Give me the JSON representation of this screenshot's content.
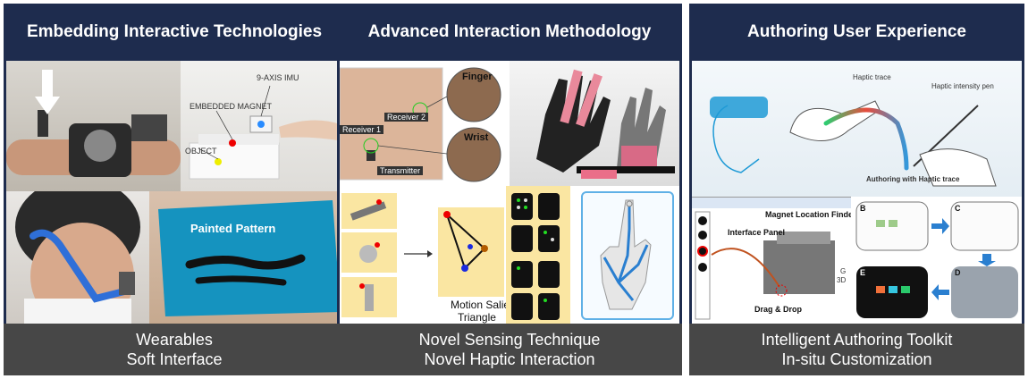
{
  "panels": [
    {
      "title": "Embedding Interactive Technologies",
      "labels": {
        "imu": "9-AXIS IMU",
        "magnet": "EMBEDDED MAGNET",
        "object": "OBJECT",
        "pattern": "Painted Pattern"
      },
      "footer": [
        "Wearables",
        "Soft Interface"
      ]
    },
    {
      "title": "Advanced Interaction Methodology",
      "labels": {
        "finger": "Finger",
        "wrist": "Wrist",
        "receiver1": "Receiver 1",
        "receiver2": "Receiver 2",
        "transmitter": "Transmitter",
        "motion": "Motion Salient",
        "triangle": "Triangle"
      },
      "footer": [
        "Novel Sensing Technique",
        "Novel Haptic Interaction"
      ]
    },
    {
      "title": "Authoring User Experience",
      "labels": {
        "haptic_trace": "Haptic trace",
        "intensity_pen": "Haptic intensity pen",
        "authoring_with": "Authoring with Haptic trace",
        "magnet_finder": "Magnet Location Finder",
        "interface_panel": "Interface Panel",
        "drag_drop": "Drag & Drop",
        "g": "G",
        "three_d": "3D",
        "step_b": "B",
        "step_c": "C",
        "step_d": "D",
        "step_e": "E"
      },
      "footer": [
        "Intelligent Authoring Toolkit",
        "In-situ Customization"
      ]
    }
  ],
  "colors": {
    "header": "#1e2c4e",
    "footer": "#474747",
    "accent_blue": "#2a7fd0",
    "strap_blue": "#2f6fd8"
  }
}
